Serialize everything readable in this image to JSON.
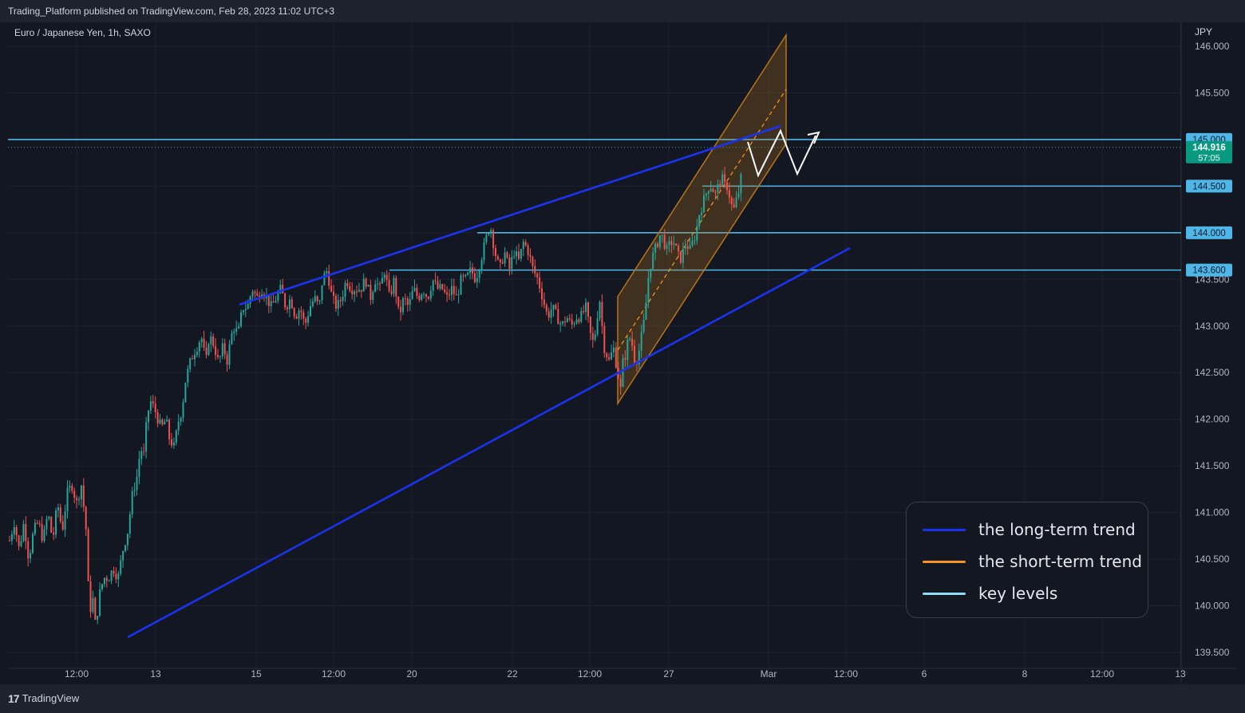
{
  "header": {
    "published": "Trading_Platform published on TradingView.com, Feb 28, 2023 11:02 UTC+3"
  },
  "chart_data": {
    "type": "candlestick",
    "symbol_label": "Euro / Japanese Yen, 1h, SAXO",
    "currency": "JPY",
    "y_range": [
      139.45,
      146.2
    ],
    "y_ticks": [
      "146.000",
      "145.500",
      "145.000",
      "144.500",
      "144.000",
      "143.500",
      "143.000",
      "142.500",
      "142.000",
      "141.500",
      "141.000",
      "140.500",
      "140.000",
      "139.500"
    ],
    "x_ticks": [
      "12:00",
      "13",
      "15",
      "12:00",
      "20",
      "22",
      "12:00",
      "27",
      "Mar",
      "12:00",
      "6",
      "8",
      "12:00",
      "13"
    ],
    "last_price": {
      "label": "144.916",
      "countdown": "57:05",
      "value": 144.916
    },
    "key_levels": [
      {
        "label": "145.000",
        "value": 145.0
      },
      {
        "label": "144.500",
        "value": 144.5
      },
      {
        "label": "144.000",
        "value": 144.0
      },
      {
        "label": "143.600",
        "value": 143.6
      }
    ],
    "candles_path": [
      [
        0,
        140.7
      ],
      [
        6,
        140.9
      ],
      [
        12,
        140.6
      ],
      [
        18,
        140.9
      ],
      [
        24,
        140.5
      ],
      [
        30,
        140.8
      ],
      [
        36,
        140.9
      ],
      [
        42,
        140.7
      ],
      [
        48,
        141.0
      ],
      [
        54,
        140.7
      ],
      [
        60,
        141.1
      ],
      [
        66,
        140.8
      ],
      [
        72,
        141.2
      ],
      [
        78,
        141.3
      ],
      [
        84,
        141.1
      ],
      [
        90,
        141.3
      ],
      [
        96,
        140.8
      ],
      [
        100,
        139.9
      ],
      [
        104,
        140.1
      ],
      [
        108,
        139.75
      ],
      [
        112,
        140.1
      ],
      [
        118,
        140.3
      ],
      [
        124,
        140.3
      ],
      [
        130,
        140.4
      ],
      [
        136,
        140.3
      ],
      [
        142,
        140.6
      ],
      [
        148,
        140.8
      ],
      [
        154,
        141.2
      ],
      [
        160,
        141.4
      ],
      [
        164,
        141.7
      ],
      [
        168,
        141.6
      ],
      [
        172,
        142.0
      ],
      [
        176,
        142.2
      ],
      [
        182,
        142.1
      ],
      [
        186,
        142.0
      ],
      [
        190,
        141.9
      ],
      [
        196,
        142.0
      ],
      [
        200,
        141.8
      ],
      [
        206,
        141.7
      ],
      [
        212,
        142.0
      ],
      [
        216,
        142.1
      ],
      [
        220,
        142.4
      ],
      [
        226,
        142.6
      ],
      [
        230,
        142.7
      ],
      [
        236,
        142.8
      ],
      [
        240,
        142.9
      ],
      [
        246,
        142.6
      ],
      [
        250,
        142.9
      ],
      [
        256,
        142.8
      ],
      [
        262,
        142.6
      ],
      [
        268,
        142.8
      ],
      [
        272,
        142.6
      ],
      [
        278,
        142.9
      ],
      [
        282,
        143.0
      ],
      [
        286,
        142.9
      ],
      [
        292,
        143.2
      ],
      [
        298,
        143.2
      ],
      [
        304,
        143.4
      ],
      [
        310,
        143.3
      ],
      [
        316,
        143.4
      ],
      [
        322,
        143.3
      ],
      [
        328,
        143.2
      ],
      [
        334,
        143.3
      ],
      [
        340,
        143.4
      ],
      [
        346,
        143.2
      ],
      [
        352,
        143.3
      ],
      [
        358,
        143.1
      ],
      [
        364,
        143.2
      ],
      [
        370,
        143.0
      ],
      [
        376,
        143.2
      ],
      [
        382,
        143.3
      ],
      [
        388,
        143.2
      ],
      [
        392,
        143.5
      ],
      [
        398,
        143.6
      ],
      [
        404,
        143.3
      ],
      [
        410,
        143.2
      ],
      [
        416,
        143.3
      ],
      [
        422,
        143.5
      ],
      [
        428,
        143.4
      ],
      [
        434,
        143.4
      ],
      [
        440,
        143.4
      ],
      [
        446,
        143.5
      ],
      [
        452,
        143.3
      ],
      [
        458,
        143.5
      ],
      [
        464,
        143.4
      ],
      [
        470,
        143.6
      ],
      [
        476,
        143.3
      ],
      [
        482,
        143.5
      ],
      [
        488,
        143.1
      ],
      [
        494,
        143.3
      ],
      [
        500,
        143.2
      ],
      [
        506,
        143.4
      ],
      [
        512,
        143.3
      ],
      [
        518,
        143.4
      ],
      [
        524,
        143.3
      ],
      [
        530,
        143.5
      ],
      [
        536,
        143.4
      ],
      [
        542,
        143.4
      ],
      [
        548,
        143.3
      ],
      [
        554,
        143.4
      ],
      [
        560,
        143.3
      ],
      [
        566,
        143.5
      ],
      [
        572,
        143.5
      ],
      [
        578,
        143.6
      ],
      [
        584,
        143.5
      ],
      [
        590,
        143.7
      ],
      [
        596,
        143.9
      ],
      [
        602,
        144.1
      ],
      [
        608,
        143.8
      ],
      [
        614,
        143.6
      ],
      [
        620,
        143.8
      ],
      [
        626,
        143.6
      ],
      [
        632,
        143.8
      ],
      [
        638,
        143.7
      ],
      [
        644,
        143.9
      ],
      [
        650,
        143.8
      ],
      [
        656,
        143.6
      ],
      [
        662,
        143.5
      ],
      [
        668,
        143.3
      ],
      [
        674,
        143.1
      ],
      [
        680,
        143.2
      ],
      [
        686,
        143.1
      ],
      [
        692,
        143.0
      ],
      [
        698,
        143.1
      ],
      [
        704,
        143.0
      ],
      [
        710,
        143.1
      ],
      [
        716,
        143.1
      ],
      [
        722,
        143.2
      ],
      [
        728,
        142.9
      ],
      [
        732,
        142.8
      ],
      [
        736,
        143.1
      ],
      [
        740,
        143.3
      ],
      [
        744,
        142.8
      ],
      [
        748,
        142.7
      ],
      [
        752,
        142.6
      ],
      [
        756,
        142.8
      ],
      [
        760,
        142.6
      ],
      [
        764,
        142.4
      ],
      [
        766,
        142.3
      ],
      [
        768,
        142.6
      ],
      [
        772,
        142.7
      ],
      [
        776,
        142.9
      ],
      [
        780,
        142.8
      ],
      [
        784,
        142.6
      ],
      [
        788,
        142.7
      ],
      [
        792,
        142.9
      ],
      [
        796,
        143.1
      ],
      [
        800,
        143.5
      ],
      [
        804,
        143.7
      ],
      [
        808,
        143.8
      ],
      [
        812,
        143.9
      ],
      [
        816,
        144.0
      ],
      [
        820,
        143.9
      ],
      [
        824,
        143.8
      ],
      [
        828,
        143.9
      ],
      [
        832,
        143.9
      ],
      [
        836,
        143.8
      ],
      [
        840,
        143.7
      ],
      [
        844,
        143.8
      ],
      [
        848,
        143.9
      ],
      [
        852,
        143.8
      ],
      [
        856,
        143.9
      ],
      [
        860,
        144.0
      ],
      [
        864,
        144.2
      ],
      [
        868,
        144.3
      ],
      [
        872,
        144.4
      ],
      [
        876,
        144.5
      ],
      [
        880,
        144.5
      ],
      [
        884,
        144.4
      ],
      [
        888,
        144.5
      ],
      [
        892,
        144.6
      ],
      [
        896,
        144.5
      ],
      [
        900,
        144.5
      ],
      [
        904,
        144.3
      ],
      [
        908,
        144.25
      ],
      [
        912,
        144.4
      ],
      [
        916,
        144.5
      ],
      [
        918,
        144.9
      ]
    ],
    "legend": {
      "placement": "bottom-right",
      "items": [
        {
          "label": "the long-term trend",
          "color": "#1b33ef"
        },
        {
          "label": "the short-term trend",
          "color": "#f7931a"
        },
        {
          "label": "key levels",
          "color": "#8fdcf5"
        }
      ]
    },
    "colors": {
      "up": "#26a69a",
      "down": "#ef5350",
      "level": "#4fb7e8",
      "trend": "#1b33ef",
      "channel": "#b8741a"
    }
  },
  "footer": {
    "brand": "TradingView"
  }
}
